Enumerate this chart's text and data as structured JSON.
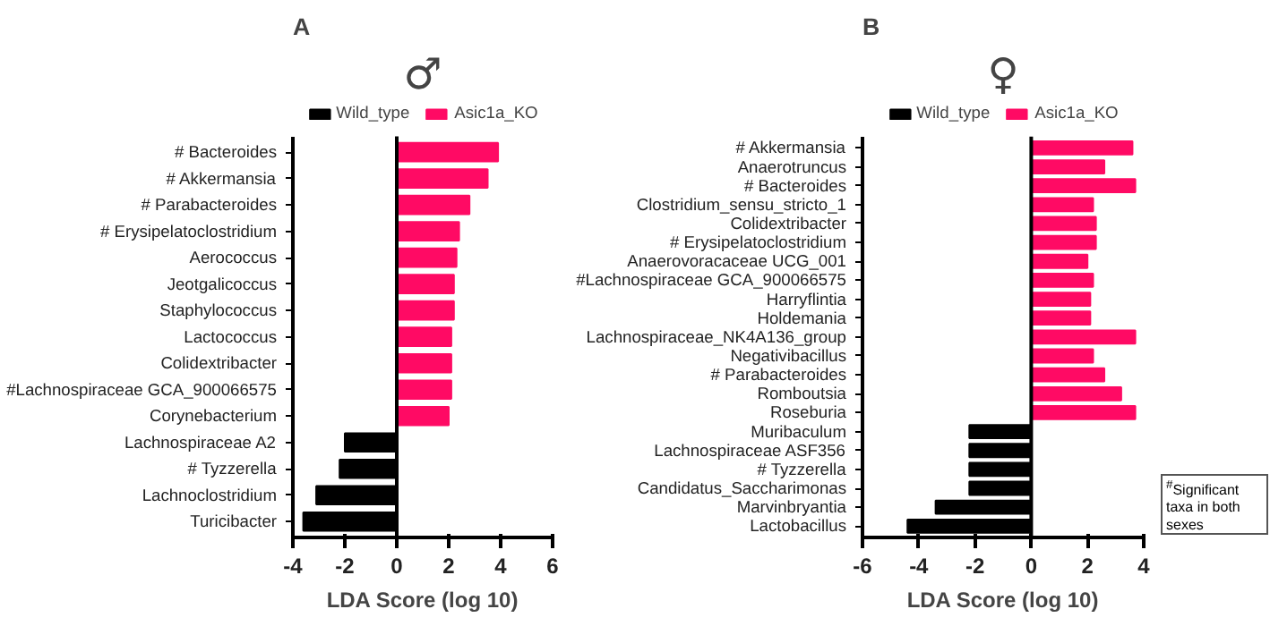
{
  "chart_data": [
    {
      "type": "bar",
      "orientation": "horizontal",
      "stacked": true,
      "title": "A",
      "subtitle": "♂",
      "xlabel": "LDA Score (log 10)",
      "legend": "top",
      "categories": [
        "# Bacteroides",
        "# Akkermansia",
        "# Parabacteroides",
        "# Erysipelatoclostridium",
        "Aerococcus",
        "Jeotgalicoccus",
        "Staphylococcus",
        "Lactococcus",
        "Colidextribacter",
        "#Lachnospiraceae GCA_900066575",
        "Corynebacterium",
        "Lachnospiraceae A2",
        "# Tyzzerella",
        "Lachnoclostridium",
        "Turicibacter"
      ],
      "series": [
        {
          "name": "Wild_type",
          "color": "#000000",
          "values": [
            null,
            null,
            null,
            null,
            null,
            null,
            null,
            null,
            null,
            null,
            null,
            -2.0,
            -2.2,
            -3.1,
            -3.6
          ]
        },
        {
          "name": "Asic1a_KO",
          "color": "#ff0a64",
          "values": [
            3.9,
            3.5,
            2.8,
            2.4,
            2.3,
            2.2,
            2.2,
            2.1,
            2.1,
            2.1,
            2.0,
            null,
            null,
            null,
            null
          ]
        }
      ],
      "xlim": [
        -4,
        6
      ],
      "xticks": [
        -4,
        -2,
        0,
        2,
        4,
        6
      ],
      "ref_lines": [
        {
          "axis": "x",
          "value": 0
        }
      ]
    },
    {
      "type": "bar",
      "orientation": "horizontal",
      "stacked": true,
      "title": "B",
      "subtitle": "♀",
      "xlabel": "LDA Score (log 10)",
      "legend": "top",
      "categories": [
        "# Akkermansia",
        "Anaerotruncus",
        "# Bacteroides",
        "Clostridium_sensu_stricto_1",
        "Colidextribacter",
        "# Erysipelatoclostridium",
        "Anaerovoracaceae UCG_001",
        "#Lachnospiraceae GCA_900066575",
        "Harryflintia",
        "Holdemania",
        "Lachnospiraceae_NK4A136_group",
        "Negativibacillus",
        "# Parabacteroides",
        "Romboutsia",
        "Roseburia",
        "Muribaculum",
        "Lachnospiraceae ASF356",
        "# Tyzzerella",
        "Candidatus_Saccharimonas",
        "Marvinbryantia",
        "Lactobacillus"
      ],
      "series": [
        {
          "name": "Wild_type",
          "color": "#000000",
          "values": [
            null,
            null,
            null,
            null,
            null,
            null,
            null,
            null,
            null,
            null,
            null,
            null,
            null,
            null,
            null,
            -2.2,
            -2.2,
            -2.2,
            -2.2,
            -3.4,
            -4.4
          ]
        },
        {
          "name": "Asic1a_KO",
          "color": "#ff0a64",
          "values": [
            3.6,
            2.6,
            3.7,
            2.2,
            2.3,
            2.3,
            2.0,
            2.2,
            2.1,
            2.1,
            3.7,
            2.2,
            2.6,
            3.2,
            3.7,
            null,
            null,
            null,
            null,
            null,
            null
          ]
        }
      ],
      "xlim": [
        -6,
        4
      ],
      "xticks": [
        -6,
        -4,
        -2,
        0,
        2,
        4
      ],
      "ref_lines": [
        {
          "axis": "x",
          "value": 0
        }
      ],
      "annotations": [
        "$^{#}$Significant taxa in both sexes"
      ]
    }
  ]
}
